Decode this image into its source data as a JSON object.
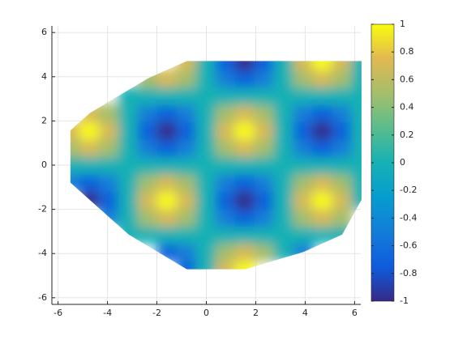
{
  "chart_data": {
    "type": "surface",
    "colormap": "parula",
    "grid": true,
    "x": [
      -6.28,
      -5.5,
      -4.71,
      -3.93,
      -3.14,
      -2.36,
      -1.57,
      -0.79,
      0,
      0.79,
      1.57,
      2.36,
      3.14,
      3.93,
      4.71,
      5.5,
      6.28
    ],
    "y": [
      -4.71,
      -3.93,
      -3.14,
      -2.36,
      -1.57,
      -0.79,
      0,
      0.79,
      1.57,
      2.36,
      3.14,
      3.93,
      4.71
    ],
    "values": [
      [
        null,
        null,
        null,
        null,
        null,
        null,
        null,
        -0.71,
        0,
        0.71,
        1,
        null,
        null,
        null,
        null,
        null,
        null
      ],
      [
        null,
        null,
        null,
        null,
        null,
        null,
        -0.71,
        -0.5,
        0,
        0.5,
        0.71,
        0.5,
        0,
        -0.5,
        null,
        null,
        null
      ],
      [
        null,
        null,
        null,
        null,
        0,
        0,
        0,
        0,
        0,
        0,
        0,
        0,
        0,
        0,
        0,
        0,
        null
      ],
      [
        null,
        null,
        null,
        -0.5,
        0,
        0.5,
        0.71,
        0.5,
        0,
        -0.5,
        -0.71,
        -0.5,
        0,
        0.5,
        0.71,
        0.5,
        null
      ],
      [
        null,
        null,
        -1,
        -0.71,
        0,
        0.71,
        1,
        0.71,
        0,
        -0.71,
        -1,
        -0.71,
        0,
        0.71,
        1,
        0.71,
        0
      ],
      [
        null,
        -0.5,
        -0.71,
        -0.5,
        0,
        0.5,
        0.71,
        0.5,
        0,
        -0.5,
        -0.71,
        -0.5,
        0,
        0.5,
        0.71,
        0.5,
        0
      ],
      [
        null,
        0,
        0,
        0,
        0,
        0,
        0,
        0,
        0,
        0,
        0,
        0,
        0,
        0,
        0,
        0,
        0
      ],
      [
        null,
        0.5,
        0.71,
        0.5,
        0,
        -0.5,
        -0.71,
        -0.5,
        0,
        0.5,
        0.71,
        0.5,
        0,
        -0.5,
        -0.71,
        -0.5,
        0
      ],
      [
        null,
        0.71,
        1,
        0.71,
        0,
        -0.71,
        -1,
        -0.71,
        0,
        0.71,
        1,
        0.71,
        0,
        -0.71,
        -1,
        -0.71,
        0
      ],
      [
        null,
        null,
        0.71,
        0.5,
        0,
        -0.5,
        -0.71,
        -0.5,
        0,
        0.5,
        0.71,
        0.5,
        0,
        -0.5,
        -0.71,
        -0.5,
        0
      ],
      [
        null,
        null,
        null,
        null,
        0,
        0,
        0,
        0,
        0,
        0,
        0,
        0,
        0,
        0,
        0,
        0,
        0
      ],
      [
        null,
        null,
        null,
        null,
        null,
        0.5,
        0.71,
        0.5,
        0,
        -0.5,
        -0.71,
        -0.5,
        0,
        0.5,
        0.71,
        0.5,
        0
      ],
      [
        null,
        null,
        null,
        null,
        null,
        null,
        null,
        0.71,
        0,
        -0.71,
        -1,
        -0.71,
        0,
        0.71,
        1,
        0.71,
        0
      ]
    ],
    "xlim": [
      -6.25,
      6.25
    ],
    "ylim": [
      -6.3,
      6.3
    ],
    "xticks": [
      -6,
      -4,
      -2,
      0,
      2,
      4,
      6
    ],
    "yticks": [
      -6,
      -4,
      -2,
      0,
      2,
      4,
      6
    ],
    "colorbar": {
      "lim": [
        -1,
        1
      ],
      "ticks": [
        -1,
        -0.8,
        -0.6,
        -0.4,
        -0.2,
        0,
        0.2,
        0.4,
        0.6,
        0.8,
        1
      ]
    }
  }
}
